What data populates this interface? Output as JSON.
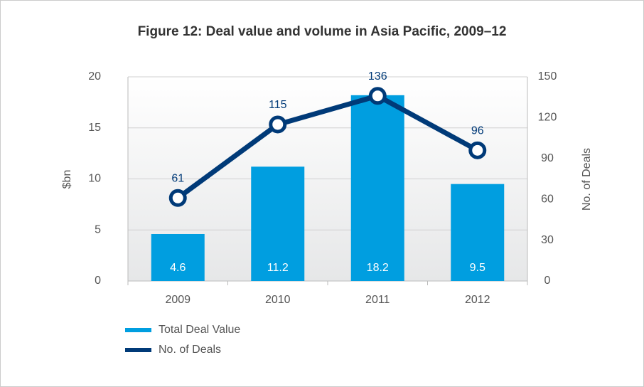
{
  "chart_data": {
    "type": "bar",
    "title": "Figure 12: Deal value and volume in Asia Pacific, 2009–12",
    "categories": [
      "2009",
      "2010",
      "2011",
      "2012"
    ],
    "series": [
      {
        "name": "Total Deal Value",
        "type": "bar",
        "color": "#009ee0",
        "values": [
          4.6,
          11.2,
          18.2,
          9.5
        ]
      },
      {
        "name": "No. of Deals",
        "type": "line",
        "axis": "y2",
        "color": "#003a78",
        "values": [
          61,
          115,
          136,
          96
        ]
      }
    ],
    "ylabel": "$bn",
    "y2label": "No. of Deals",
    "ylim": [
      0,
      20
    ],
    "yticks": [
      0,
      5,
      10,
      15,
      20
    ],
    "y2lim": [
      0,
      150
    ],
    "y2ticks": [
      0,
      30,
      60,
      90,
      120,
      150
    ],
    "grid": true,
    "legend": "bottom-left"
  }
}
